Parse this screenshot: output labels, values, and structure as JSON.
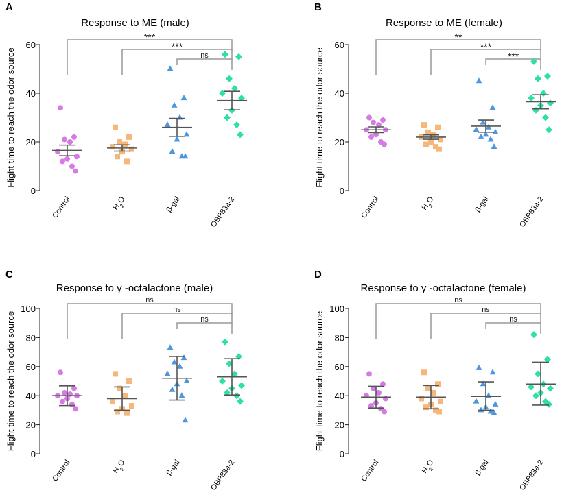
{
  "figure": {
    "ylabel": "Flight time to reach the odor source",
    "categories": [
      "Control",
      "H2O",
      "β-gal",
      "OBP83a-2"
    ],
    "colors": [
      "#d67be6",
      "#f5b87a",
      "#4d96e0",
      "#2ee0a4"
    ],
    "markers": [
      "circle",
      "square",
      "triangle",
      "diamond"
    ]
  },
  "chart_data": [
    {
      "type": "scatter",
      "panel": "A",
      "title": "Response to ME (male)",
      "ylim": [
        0,
        60
      ],
      "yticks": [
        0,
        20,
        40,
        60
      ],
      "categories": [
        "Control",
        "H2O",
        "β-gal",
        "OBP83a-2"
      ],
      "series": [
        {
          "name": "Control",
          "values": [
            34,
            22,
            21,
            20,
            16,
            14,
            13,
            12,
            10,
            8
          ],
          "mean": 16.5,
          "sem_low": 14.3,
          "sem_high": 18.7
        },
        {
          "name": "H2O",
          "values": [
            26,
            22,
            20,
            19,
            18,
            17,
            16,
            14,
            12
          ],
          "mean": 17.5,
          "sem_low": 16.2,
          "sem_high": 18.8
        },
        {
          "name": "β-gal",
          "values": [
            50,
            38,
            35,
            30,
            27,
            23,
            21,
            16,
            14,
            14
          ],
          "mean": 26,
          "sem_low": 22.3,
          "sem_high": 29.7
        },
        {
          "name": "OBP83a-2",
          "values": [
            56,
            55,
            46,
            42,
            40,
            38,
            33,
            30,
            27,
            23
          ],
          "mean": 37,
          "sem_low": 33.2,
          "sem_high": 40.8
        }
      ],
      "comparisons": [
        {
          "from": 0,
          "to": 3,
          "label": "***"
        },
        {
          "from": 1,
          "to": 3,
          "label": "***"
        },
        {
          "from": 2,
          "to": 3,
          "label": "ns"
        }
      ]
    },
    {
      "type": "scatter",
      "panel": "B",
      "title": "Response to ME (female)",
      "ylim": [
        0,
        60
      ],
      "yticks": [
        0,
        20,
        40,
        60
      ],
      "categories": [
        "Control",
        "H2O",
        "β-gal",
        "OBP83a-2"
      ],
      "series": [
        {
          "name": "Control",
          "values": [
            30,
            29,
            28,
            27,
            25,
            25,
            23,
            22,
            20,
            19
          ],
          "mean": 25,
          "sem_low": 23.8,
          "sem_high": 26.2
        },
        {
          "name": "H2O",
          "values": [
            27,
            26,
            24,
            23,
            22,
            21,
            20,
            19,
            18,
            17
          ],
          "mean": 22,
          "sem_low": 21.1,
          "sem_high": 22.9
        },
        {
          "name": "β-gal",
          "values": [
            45,
            34,
            28,
            26,
            25,
            24,
            23,
            22,
            21,
            18
          ],
          "mean": 26.5,
          "sem_low": 24,
          "sem_high": 29
        },
        {
          "name": "OBP83a-2",
          "values": [
            53,
            47,
            46,
            40,
            38,
            36,
            35,
            33,
            30,
            25
          ],
          "mean": 36.5,
          "sem_low": 33.6,
          "sem_high": 39.4
        }
      ],
      "comparisons": [
        {
          "from": 0,
          "to": 3,
          "label": "**"
        },
        {
          "from": 1,
          "to": 3,
          "label": "***"
        },
        {
          "from": 2,
          "to": 3,
          "label": "***"
        }
      ]
    },
    {
      "type": "scatter",
      "panel": "C",
      "title": "Response to γ -octalactone (male)",
      "ylim": [
        0,
        100
      ],
      "yticks": [
        0,
        20,
        40,
        60,
        80,
        100
      ],
      "categories": [
        "Control",
        "H2O",
        "β-gal",
        "OBP83a-2"
      ],
      "series": [
        {
          "name": "Control",
          "values": [
            56,
            45,
            42,
            41,
            40,
            40,
            38,
            36,
            34,
            31
          ],
          "mean": 40,
          "sem_low": 33.2,
          "sem_high": 46.8
        },
        {
          "name": "H2O",
          "values": [
            55,
            50,
            45,
            40,
            36,
            33,
            31,
            29,
            28
          ],
          "mean": 38,
          "sem_low": 30,
          "sem_high": 46
        },
        {
          "name": "β-gal",
          "values": [
            73,
            66,
            63,
            60,
            55,
            50,
            48,
            44,
            40,
            23
          ],
          "mean": 52,
          "sem_low": 37,
          "sem_high": 67
        },
        {
          "name": "OBP83a-2",
          "values": [
            77,
            67,
            62,
            55,
            50,
            47,
            45,
            42,
            40,
            36
          ],
          "mean": 53,
          "sem_low": 40.5,
          "sem_high": 65.5
        }
      ],
      "comparisons": [
        {
          "from": 0,
          "to": 3,
          "label": "ns"
        },
        {
          "from": 1,
          "to": 3,
          "label": "ns"
        },
        {
          "from": 2,
          "to": 3,
          "label": "ns"
        }
      ]
    },
    {
      "type": "scatter",
      "panel": "D",
      "title": "Response to γ -octalactone (female)",
      "ylim": [
        0,
        100
      ],
      "yticks": [
        0,
        20,
        40,
        60,
        80,
        100
      ],
      "categories": [
        "Control",
        "H2O",
        "β-gal",
        "OBP83a-2"
      ],
      "series": [
        {
          "name": "Control",
          "values": [
            55,
            48,
            45,
            42,
            40,
            38,
            35,
            33,
            31,
            29
          ],
          "mean": 39,
          "sem_low": 31.5,
          "sem_high": 46.5
        },
        {
          "name": "H2O",
          "values": [
            56,
            48,
            45,
            42,
            38,
            36,
            34,
            32,
            30,
            29
          ],
          "mean": 39,
          "sem_low": 31,
          "sem_high": 47
        },
        {
          "name": "β-gal",
          "values": [
            59,
            56,
            48,
            40,
            36,
            34,
            32,
            30,
            29,
            28
          ],
          "mean": 39.5,
          "sem_low": 30,
          "sem_high": 49.5
        },
        {
          "name": "OBP83a-2",
          "values": [
            82,
            65,
            55,
            48,
            46,
            45,
            42,
            40,
            36,
            34
          ],
          "mean": 48,
          "sem_low": 33.5,
          "sem_high": 63
        }
      ],
      "comparisons": [
        {
          "from": 0,
          "to": 3,
          "label": "ns"
        },
        {
          "from": 1,
          "to": 3,
          "label": "ns"
        },
        {
          "from": 2,
          "to": 3,
          "label": "ns"
        }
      ]
    }
  ]
}
